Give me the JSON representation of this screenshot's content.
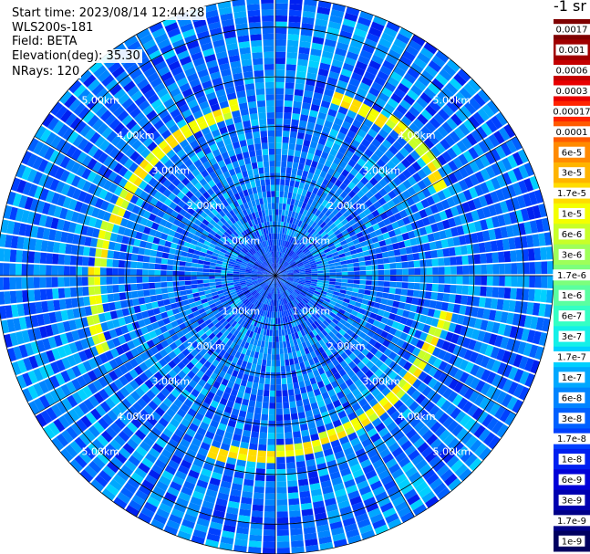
{
  "info": {
    "start_time": "Start time: 2023/08/14 12:44:28",
    "instrument": "WLS200s-181",
    "field": "Field: BETA",
    "elevation": "Elevation(deg): 35.30",
    "nrays": "NRays: 120"
  },
  "colorbar": {
    "unit": "-1 sr",
    "labels": [
      "0.0017",
      "0.001",
      "0.0006",
      "0.0003",
      "0.00017",
      "0.0001",
      "6e-5",
      "3e-5",
      "1.7e-5",
      "1e-5",
      "6e-6",
      "3e-6",
      "1.7e-6",
      "1e-6",
      "6e-7",
      "3e-7",
      "1.7e-7",
      "1e-7",
      "6e-8",
      "3e-8",
      "1.7e-8",
      "1e-8",
      "6e-9",
      "3e-9",
      "1.7e-9",
      "1e-9"
    ],
    "colors": [
      "#7f0000",
      "#a00000",
      "#c40000",
      "#e80000",
      "#ff2400",
      "#ff5a00",
      "#ff8a00",
      "#ffb400",
      "#ffdc00",
      "#f4ff00",
      "#c8ff28",
      "#9eff5a",
      "#7cff7c",
      "#5affa0",
      "#34ffc4",
      "#14f0e8",
      "#00d0ff",
      "#00a8ff",
      "#0084ff",
      "#0060ff",
      "#0040ff",
      "#0020f0",
      "#0000d8",
      "#0000b0",
      "#000088",
      "#000060"
    ]
  },
  "chart_data": {
    "type": "heatmap",
    "projection": "polar (PPI scan)",
    "field": "BETA",
    "elevation_deg": 35.3,
    "nrays": 120,
    "range_km_max": 5.6,
    "range_rings_km": [
      1,
      2,
      3,
      4,
      5
    ],
    "ring_labels": [
      "1.00km",
      "2.00km",
      "3.00km",
      "4.00km",
      "5.00km"
    ],
    "colorscale_values": [
      0.0017,
      0.001,
      0.0006,
      0.0003,
      0.00017,
      0.0001,
      6e-05,
      3e-05,
      1.7e-05,
      1e-05,
      6e-06,
      3e-06,
      1.7e-06,
      1e-06,
      6e-07,
      3e-07,
      1.7e-07,
      1e-07,
      6e-08,
      3e-08,
      1.7e-08,
      1e-08,
      6e-09,
      3e-09,
      1.7e-09,
      1e-09
    ],
    "feature_ring_km": 3.6,
    "feature_ring_value": 1e-05,
    "background_value_range": [
      1e-08,
      1.7e-07
    ]
  }
}
